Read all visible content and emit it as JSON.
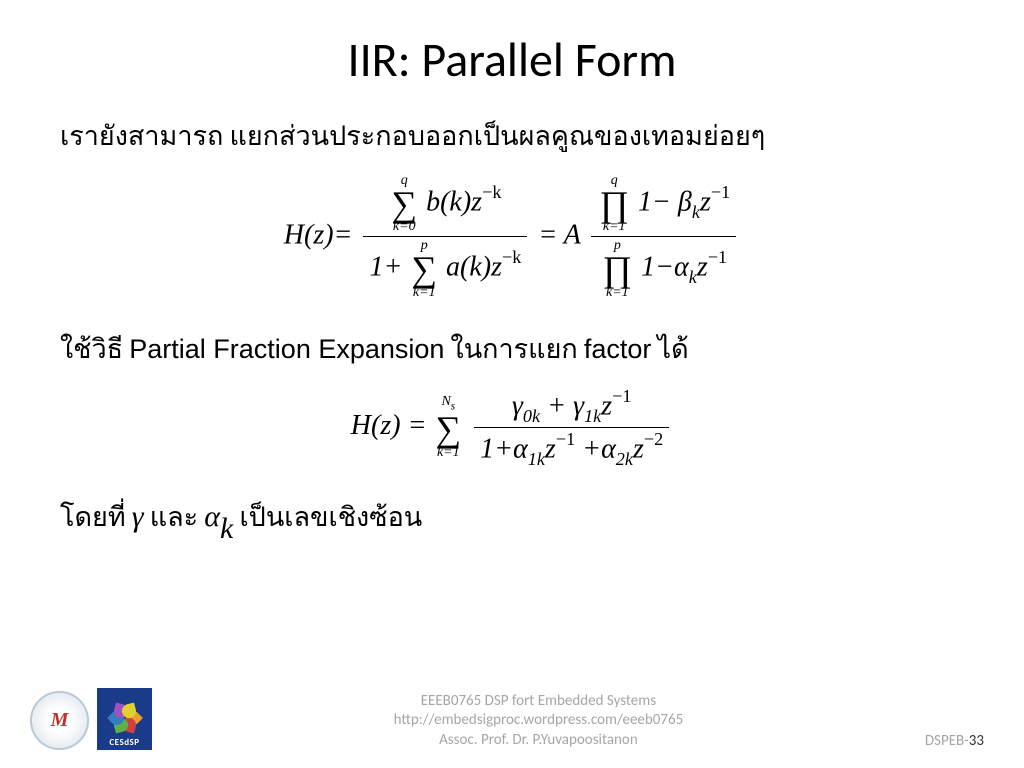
{
  "title": "IIR: Parallel Form",
  "line1": "เรายังสามารถ แยกส่วนประกอบออกเป็นผลคูณของเทอมย่อยๆ",
  "line2_pre": "ใช้วิธี ",
  "line2_mid": "Partial Fraction Expansion",
  "line2_post1": " ในการแยก ",
  "line2_post2": "factor",
  "line2_post3": " ได้",
  "where_pre": "โดยที่    ",
  "where_gamma": "γ",
  "where_mid": " และ     ",
  "where_alpha": "α",
  "where_alpha_sub": "k",
  "where_post": " เป็นเลขเชิงซ้อน",
  "eq1": {
    "lhs": "H(z)",
    "eq": "=",
    "num_sum_top": "q",
    "num_sum_bot": "k=0",
    "num_term": "b(k)z",
    "num_exp": "−k",
    "den_one": "1+",
    "den_sum_top": "p",
    "den_sum_bot": "k=1",
    "den_term": "a(k)z",
    "den_exp": "−k",
    "eq2": "= A",
    "num2_prod_top": "q",
    "num2_prod_bot": "k=1",
    "num2_term": "1− β",
    "num2_sub": "k",
    "num2_z": "z",
    "num2_exp": "−1",
    "den2_prod_top": "p",
    "den2_prod_bot": "k=1",
    "den2_term": "1−α",
    "den2_sub": "k",
    "den2_z": "z",
    "den2_exp": "−1"
  },
  "eq2": {
    "lhs": "H(z) =",
    "sum_top": "N",
    "sum_top_sub": "s",
    "sum_bot": "k=1",
    "num_g0": "γ",
    "num_g0_sub": "0k",
    "num_plus": " + ",
    "num_g1": "γ",
    "num_g1_sub": "1k",
    "num_z": "z",
    "num_exp": "−1",
    "den_one": "1+α",
    "den_a1_sub": "1k",
    "den_z1": "z",
    "den_exp1": "−1",
    "den_plus": " +α",
    "den_a2_sub": "2k",
    "den_z2": "z",
    "den_exp2": "−2"
  },
  "footer": {
    "logo1_text": "M",
    "logo2_text": "CESdSP",
    "center_line1": "EEEB0765  DSP fort Embedded Systems",
    "center_line2": "http://embedsigproc.wordpress.com/eeeb0765",
    "center_line3": "Assoc. Prof. Dr. P.Yuvapoositanon",
    "right_prefix": "DSPEB-",
    "right_page": "33"
  },
  "colors": {
    "petals": [
      "#e8a030",
      "#d04040",
      "#60b048",
      "#3080c0",
      "#a050c0",
      "#e0d030"
    ]
  }
}
